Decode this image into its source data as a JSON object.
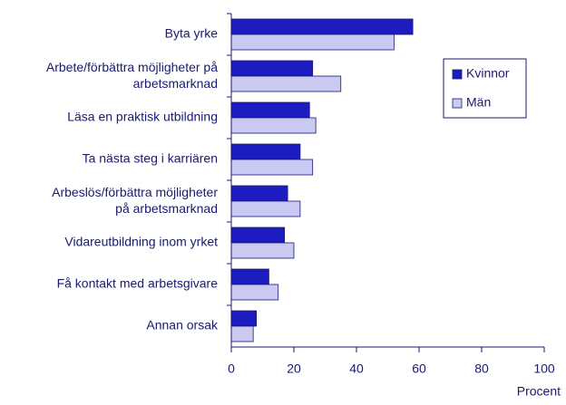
{
  "chart_data": {
    "type": "hbar",
    "categories": [
      "Byta yrke",
      "Arbete/förbättra möjligheter på\narbetsmarknad",
      "Läsa en praktisk utbildning",
      "Ta nästa steg i karriären",
      "Arbeslös/förbättra möjligheter\npå arbetsmarknad",
      "Vidareutbildning inom yrket",
      "Få kontakt med arbetsgivare",
      "Annan orsak"
    ],
    "series": [
      {
        "name": "Kvinnor",
        "color": "#1c1cc0",
        "values": [
          58,
          26,
          25,
          22,
          18,
          17,
          12,
          8
        ]
      },
      {
        "name": "Män",
        "color": "#c9c9f2",
        "values": [
          52,
          35,
          27,
          26,
          22,
          20,
          15,
          7
        ]
      }
    ],
    "xlabel": "Procent",
    "xlim": [
      0,
      100
    ],
    "xticks": [
      0,
      20,
      40,
      60,
      80,
      100
    ]
  }
}
